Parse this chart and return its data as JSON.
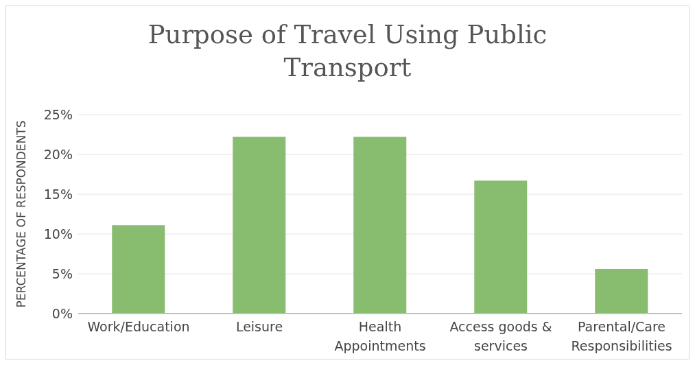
{
  "chart_data": {
    "type": "bar",
    "title": "Purpose of Travel Using Public Transport",
    "ylabel": "PERCENTAGE OF RESPONDENTS",
    "categories": [
      "Work/Education",
      "Leisure",
      "Health Appointments",
      "Access goods & services",
      "Parental/Care Responsibilities"
    ],
    "values": [
      11.1,
      22.2,
      22.2,
      16.7,
      5.6
    ],
    "color": "#88bc6e",
    "ylim": [
      0,
      25
    ],
    "yticks": [
      {
        "value": 0,
        "label": "0%"
      },
      {
        "value": 5,
        "label": "5%"
      },
      {
        "value": 10,
        "label": "10%"
      },
      {
        "value": 15,
        "label": "15%"
      },
      {
        "value": 20,
        "label": "20%"
      },
      {
        "value": 25,
        "label": "25%"
      }
    ],
    "grid": "y"
  }
}
